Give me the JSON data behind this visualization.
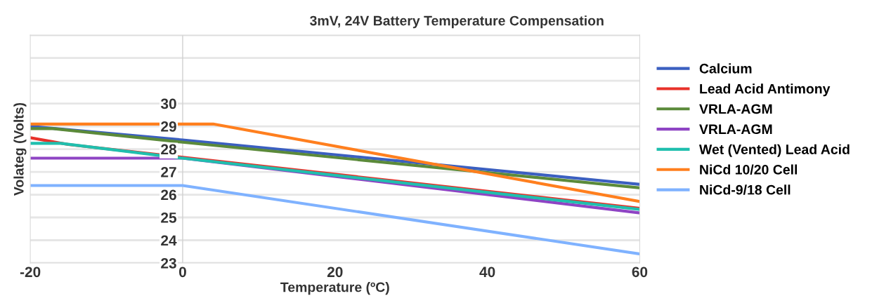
{
  "chart_data": {
    "type": "line",
    "title": "3mV, 24V Battery Temperature Compensation",
    "xlabel": "Temperature (ºC)",
    "ylabel": "Volateg (Volts)",
    "xlim": [
      -20,
      60
    ],
    "xticks": [
      -20,
      0,
      20,
      40,
      60
    ],
    "ylim": [
      23,
      33
    ],
    "yticks": [
      23,
      24,
      25,
      26,
      27,
      28,
      29,
      30,
      {
        "value": 31,
        "label": null
      },
      {
        "value": 32,
        "label": null
      },
      {
        "value": 33,
        "label": null
      }
    ],
    "grid": "y",
    "legend": "right",
    "marker": "none",
    "line_style": "solid",
    "series": [
      {
        "name": "Calcium",
        "color": "#3b5fc0",
        "x": [
          -20,
          0,
          60
        ],
        "values": [
          29.0,
          28.4,
          26.45
        ]
      },
      {
        "name": "Lead Acid Antimony",
        "color": "#e8312a",
        "x": [
          -20,
          -15,
          60
        ],
        "values": [
          28.5,
          28.2,
          25.4
        ]
      },
      {
        "name": "VRLA-AGM",
        "color": "#5b8a3a",
        "x": [
          -20,
          -17,
          0,
          60
        ],
        "values": [
          28.9,
          28.9,
          28.3,
          26.3
        ]
      },
      {
        "name": "VRLA-AGM",
        "color": "#8e44c4",
        "x": [
          -20,
          0,
          60
        ],
        "values": [
          27.6,
          27.6,
          25.2
        ]
      },
      {
        "name": "Wet (Vented) Lead Acid",
        "color": "#20bfae",
        "x": [
          -20,
          -16,
          0,
          60
        ],
        "values": [
          28.25,
          28.25,
          27.6,
          25.35
        ]
      },
      {
        "name": "NiCd 10/20 Cell",
        "color": "#ff7f1e",
        "x": [
          -20,
          4,
          60
        ],
        "values": [
          29.1,
          29.1,
          25.7
        ]
      },
      {
        "name": "NiCd-9/18 Cell",
        "color": "#7fb2ff",
        "x": [
          -20,
          0,
          60
        ],
        "values": [
          26.4,
          26.4,
          23.4
        ]
      }
    ]
  }
}
